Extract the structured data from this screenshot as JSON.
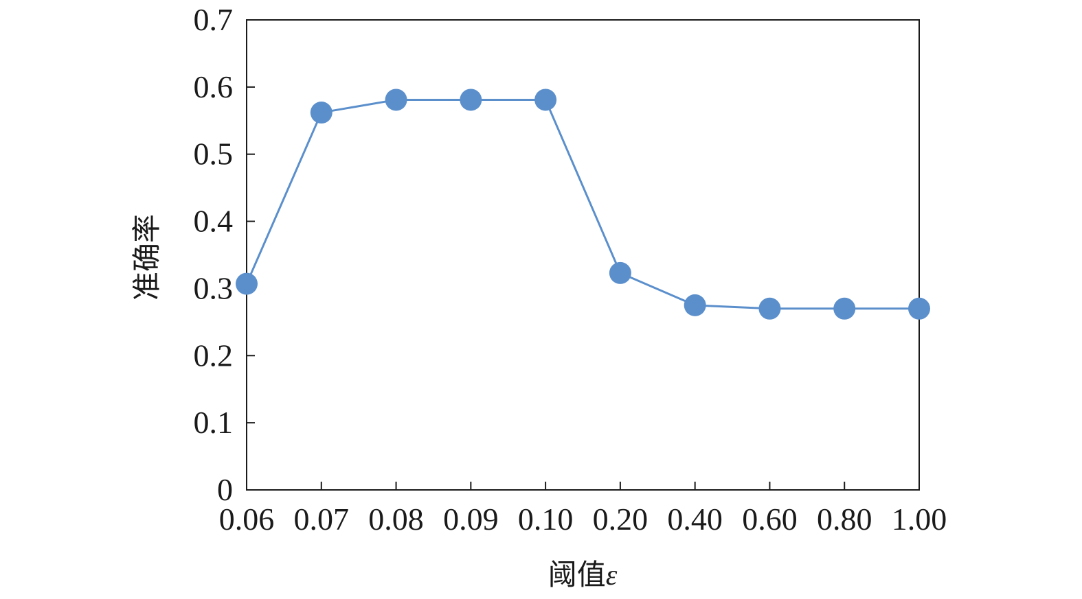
{
  "chart_data": {
    "type": "line",
    "title": "",
    "xlabel": "阈值",
    "xlabel_symbol": "ε",
    "ylabel": "准确率",
    "categories": [
      "0.06",
      "0.07",
      "0.08",
      "0.09",
      "0.10",
      "0.20",
      "0.40",
      "0.60",
      "0.80",
      "1.00"
    ],
    "series": [
      {
        "values": [
          0.307,
          0.562,
          0.581,
          0.581,
          0.581,
          0.323,
          0.275,
          0.27,
          0.27,
          0.27
        ]
      }
    ],
    "ylim": [
      0,
      0.7
    ],
    "yticks": [
      "0",
      "0.1",
      "0.2",
      "0.3",
      "0.4",
      "0.5",
      "0.6",
      "0.7"
    ],
    "grid": false,
    "legend": "none"
  },
  "colors": {
    "series": "#5b8fcc",
    "axis": "#1a1a1a"
  }
}
